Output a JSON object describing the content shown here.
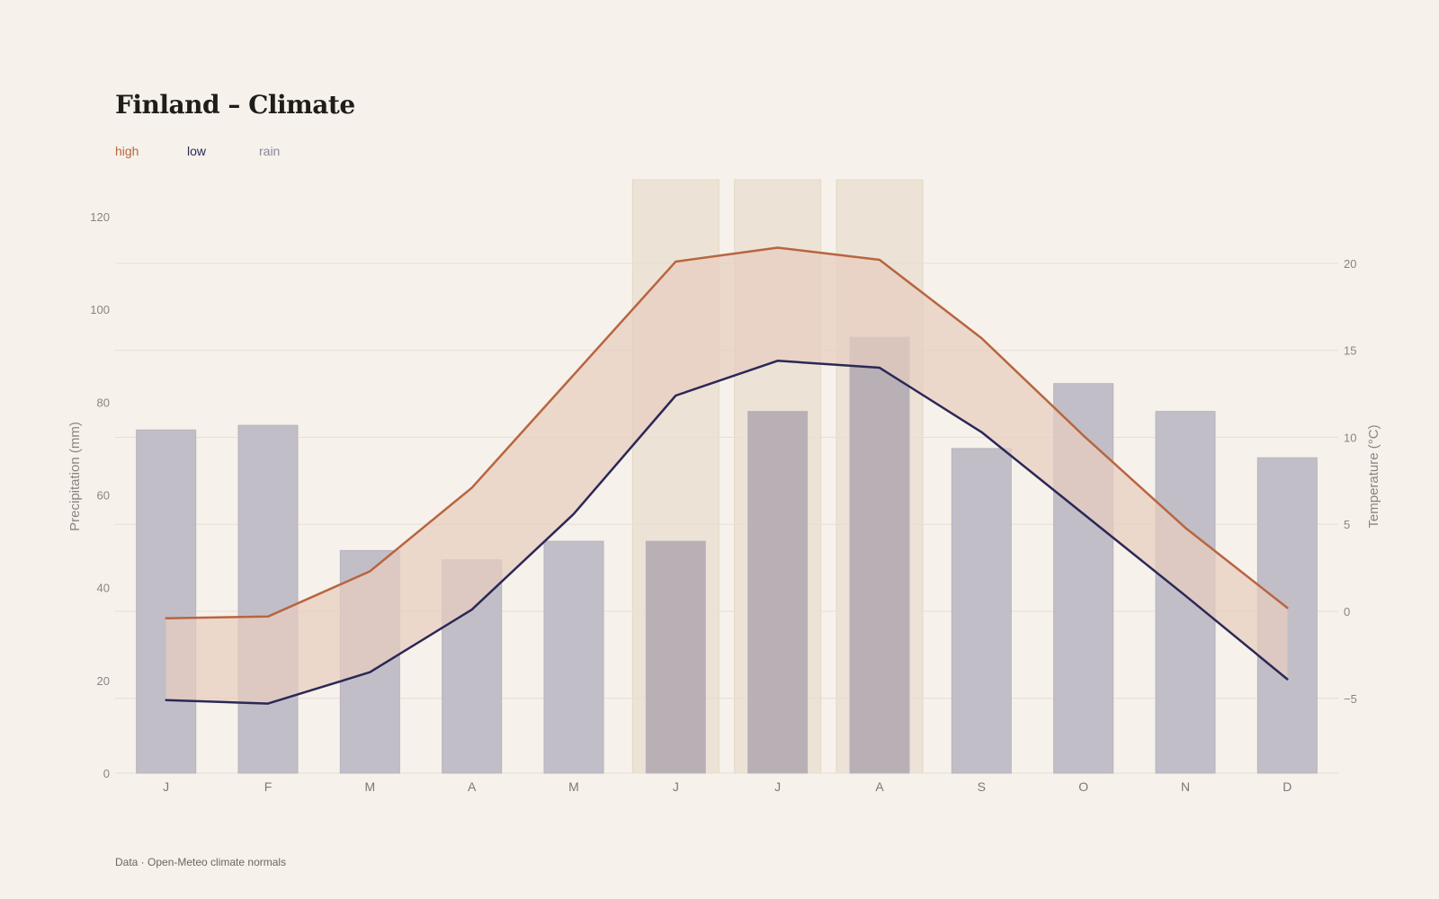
{
  "title": "Finland – Climate",
  "legend": [
    {
      "key": "high",
      "label": "high",
      "color": "#b8653f"
    },
    {
      "key": "low",
      "label": "low",
      "color": "#2b2857"
    },
    {
      "key": "rain",
      "label": "rain",
      "color": "#8b86a0"
    }
  ],
  "source": "Data · Open-Meteo climate normals",
  "colors": {
    "high": "#b8653f",
    "low": "#2b2857",
    "rain_bar": "#c2bec8",
    "band_fill": "#e8cdbf",
    "summer_highlight": "#ece3d6",
    "grid": "#e7ded3",
    "background": "#f6f1ea"
  },
  "chart_data": {
    "type": "bar+line",
    "categories": [
      "J",
      "F",
      "M",
      "A",
      "M",
      "J",
      "J",
      "A",
      "S",
      "O",
      "N",
      "D"
    ],
    "highlighted_categories": [
      5,
      6,
      7
    ],
    "y_left": {
      "label": "Precipitation (mm)",
      "lim": [
        0,
        120
      ],
      "ticks": [
        0,
        20,
        40,
        60,
        80,
        100,
        120
      ]
    },
    "y_right": {
      "label": "Temperature (°C)",
      "lim": [
        -9.3,
        24.8
      ],
      "ticks": [
        -5,
        0,
        5,
        10,
        15,
        20
      ]
    },
    "series": [
      {
        "name": "rain",
        "type": "bar",
        "axis": "left",
        "values": [
          74,
          75,
          48,
          46,
          50,
          50,
          78,
          94,
          70,
          84,
          78,
          68
        ]
      },
      {
        "name": "high",
        "type": "line",
        "axis": "right",
        "values": [
          -0.4,
          -0.3,
          2.3,
          7.1,
          13.6,
          20.1,
          20.9,
          20.2,
          15.7,
          10.1,
          4.8,
          0.2
        ]
      },
      {
        "name": "low",
        "type": "line",
        "axis": "right",
        "values": [
          -5.1,
          -5.3,
          -3.5,
          0.1,
          5.6,
          12.4,
          14.4,
          14.0,
          10.3,
          5.6,
          0.9,
          -3.9
        ]
      }
    ],
    "band_between": [
      "low",
      "high"
    ],
    "grid": true,
    "legend_position": "top-left"
  }
}
